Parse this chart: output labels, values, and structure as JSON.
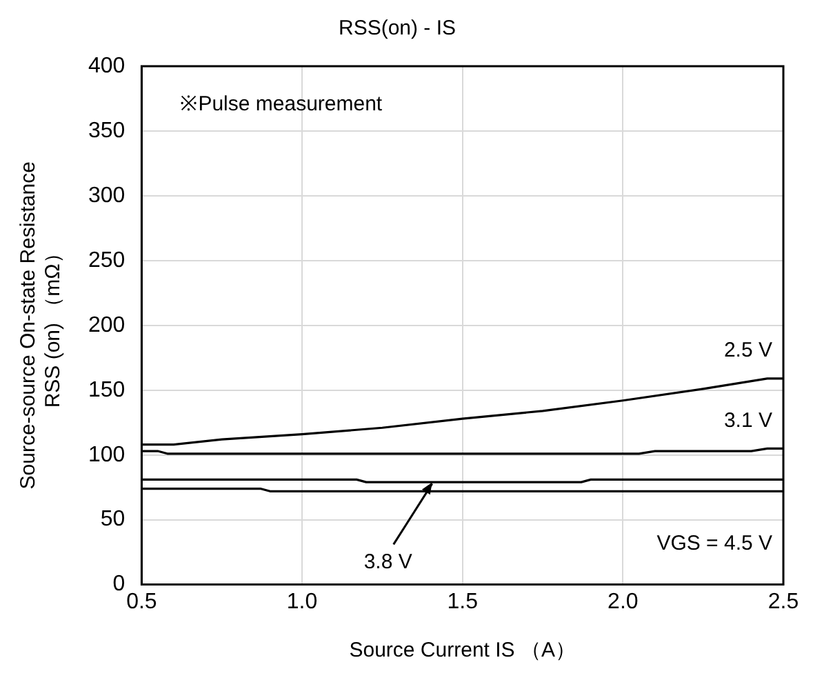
{
  "chart_data": {
    "type": "line",
    "title": "RSS(on) - IS",
    "xlabel": "Source Current IS （A）",
    "ylabel": "Source-source On-state Resistance\nRSS (on) （mΩ）",
    "annotations": [
      "※Pulse measurement"
    ],
    "xlim": [
      0.5,
      2.5
    ],
    "xticks": [
      {
        "value": 0.5,
        "label": "0.5"
      },
      {
        "value": 1,
        "label": "1.0"
      },
      {
        "value": 1.5,
        "label": "1.5"
      },
      {
        "value": 2,
        "label": "2.0"
      },
      {
        "value": 2.5,
        "label": "2.5"
      }
    ],
    "ylim": [
      0,
      400
    ],
    "yticks": [
      0,
      50,
      100,
      150,
      200,
      250,
      300,
      350,
      400
    ],
    "grid": true,
    "legend": false,
    "marker": "none",
    "line_style": "solid",
    "series": [
      {
        "name": "2.5 V",
        "color": "#000000",
        "x": [
          0.5,
          0.6,
          0.75,
          1.0,
          1.25,
          1.5,
          1.75,
          2.0,
          2.25,
          2.45,
          2.5
        ],
        "values": [
          108,
          108,
          112,
          116,
          121,
          128,
          134,
          142,
          151,
          159,
          159
        ]
      },
      {
        "name": "3.1 V",
        "color": "#000000",
        "x": [
          0.5,
          0.55,
          0.58,
          2.05,
          2.1,
          2.4,
          2.45,
          2.5
        ],
        "values": [
          103,
          103,
          101,
          101,
          103,
          103,
          105,
          105
        ]
      },
      {
        "name": "3.8 V",
        "color": "#000000",
        "x": [
          0.5,
          1.17,
          1.2,
          1.87,
          1.9,
          2.5
        ],
        "values": [
          81,
          81,
          79,
          79,
          81,
          81
        ]
      },
      {
        "name": "VGS = 4.5 V",
        "color": "#000000",
        "x": [
          0.5,
          0.87,
          0.9,
          2.5
        ],
        "values": [
          74,
          74,
          72,
          72
        ]
      }
    ]
  }
}
